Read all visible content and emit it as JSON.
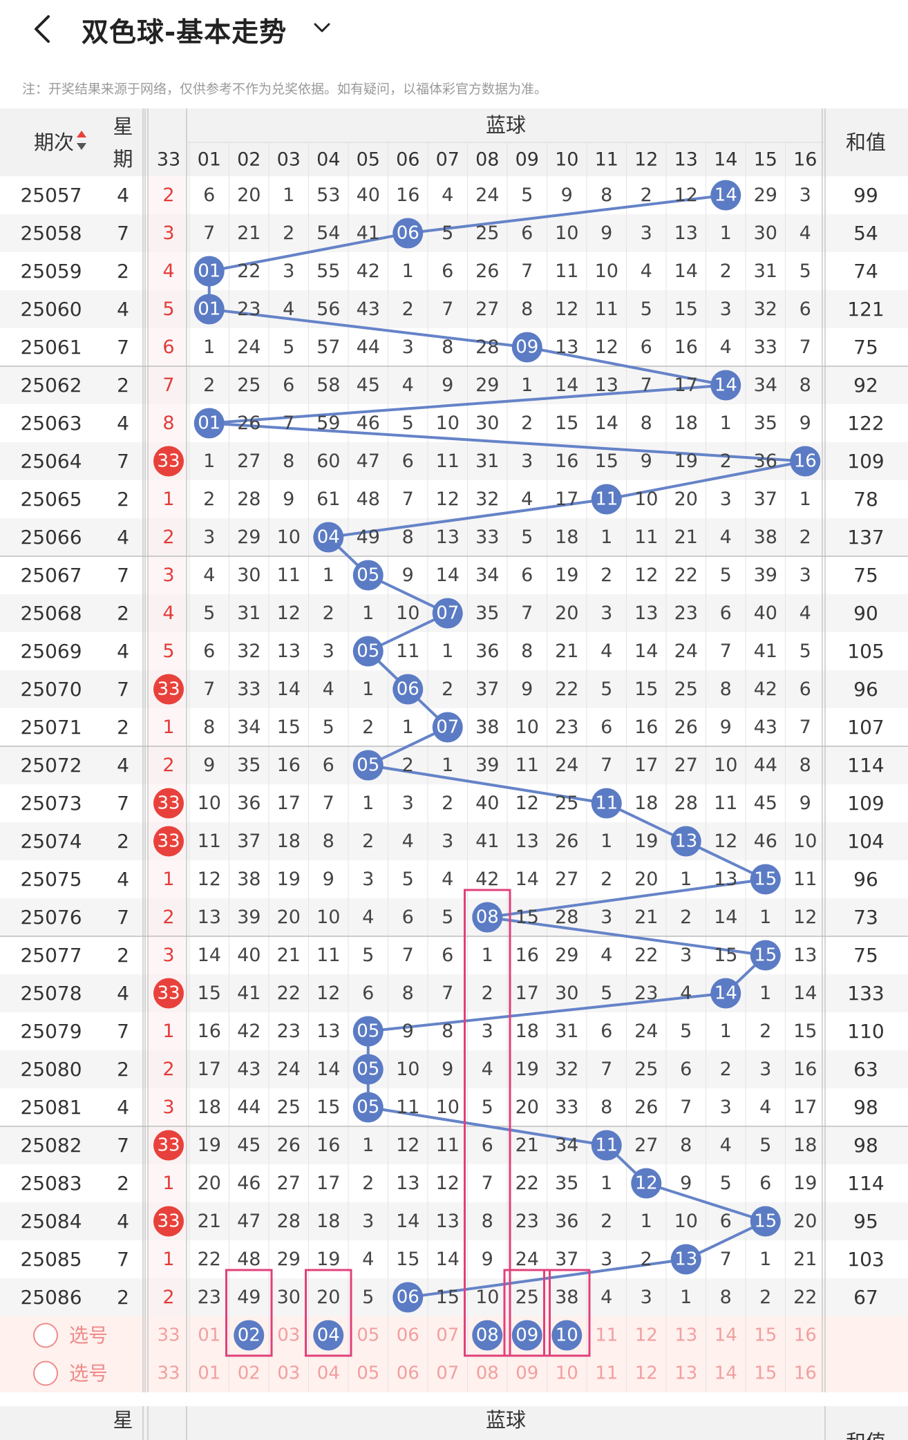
{
  "header": {
    "title": "双色球-基本走势"
  },
  "notice": "注：开奖结果来源于网络，仅供参考不作为兑奖依据。如有疑问，以福体彩官方数据为准。",
  "table": {
    "col_period": "期次",
    "col_week": "星期",
    "col_blue_group": "蓝球",
    "col_sum": "和值",
    "col_omit": "33",
    "blue_numbers": [
      "01",
      "02",
      "03",
      "04",
      "05",
      "06",
      "07",
      "08",
      "09",
      "10",
      "11",
      "12",
      "13",
      "14",
      "15",
      "16"
    ],
    "rows": [
      {
        "p": "25057",
        "w": "4",
        "o": "2",
        "b": 14,
        "s": "99",
        "c": [
          "6",
          "20",
          "1",
          "53",
          "40",
          "16",
          "4",
          "24",
          "5",
          "9",
          "8",
          "2",
          "12",
          "14",
          "29",
          "3"
        ]
      },
      {
        "p": "25058",
        "w": "7",
        "o": "3",
        "b": 6,
        "s": "54",
        "c": [
          "7",
          "21",
          "2",
          "54",
          "41",
          "06",
          "5",
          "25",
          "6",
          "10",
          "9",
          "3",
          "13",
          "1",
          "30",
          "4"
        ]
      },
      {
        "p": "25059",
        "w": "2",
        "o": "4",
        "b": 1,
        "s": "74",
        "c": [
          "01",
          "22",
          "3",
          "55",
          "42",
          "1",
          "6",
          "26",
          "7",
          "11",
          "10",
          "4",
          "14",
          "2",
          "31",
          "5"
        ]
      },
      {
        "p": "25060",
        "w": "4",
        "o": "5",
        "b": 1,
        "s": "121",
        "c": [
          "01",
          "23",
          "4",
          "56",
          "43",
          "2",
          "7",
          "27",
          "8",
          "12",
          "11",
          "5",
          "15",
          "3",
          "32",
          "6"
        ]
      },
      {
        "p": "25061",
        "w": "7",
        "o": "6",
        "b": 9,
        "s": "75",
        "c": [
          "1",
          "24",
          "5",
          "57",
          "44",
          "3",
          "8",
          "28",
          "09",
          "13",
          "12",
          "6",
          "16",
          "4",
          "33",
          "7"
        ]
      },
      {
        "p": "25062",
        "w": "2",
        "o": "7",
        "b": 14,
        "s": "92",
        "c": [
          "2",
          "25",
          "6",
          "58",
          "45",
          "4",
          "9",
          "29",
          "1",
          "14",
          "13",
          "7",
          "17",
          "14",
          "34",
          "8"
        ]
      },
      {
        "p": "25063",
        "w": "4",
        "o": "8",
        "b": 1,
        "s": "122",
        "c": [
          "01",
          "26",
          "7",
          "59",
          "46",
          "5",
          "10",
          "30",
          "2",
          "15",
          "14",
          "8",
          "18",
          "1",
          "35",
          "9"
        ]
      },
      {
        "p": "25064",
        "w": "7",
        "o": "33",
        "b": 16,
        "s": "109",
        "c": [
          "1",
          "27",
          "8",
          "60",
          "47",
          "6",
          "11",
          "31",
          "3",
          "16",
          "15",
          "9",
          "19",
          "2",
          "36",
          "16"
        ]
      },
      {
        "p": "25065",
        "w": "2",
        "o": "1",
        "b": 11,
        "s": "78",
        "c": [
          "2",
          "28",
          "9",
          "61",
          "48",
          "7",
          "12",
          "32",
          "4",
          "17",
          "11",
          "10",
          "20",
          "3",
          "37",
          "1"
        ]
      },
      {
        "p": "25066",
        "w": "4",
        "o": "2",
        "b": 4,
        "s": "137",
        "c": [
          "3",
          "29",
          "10",
          "04",
          "49",
          "8",
          "13",
          "33",
          "5",
          "18",
          "1",
          "11",
          "21",
          "4",
          "38",
          "2"
        ]
      },
      {
        "p": "25067",
        "w": "7",
        "o": "3",
        "b": 5,
        "s": "75",
        "c": [
          "4",
          "30",
          "11",
          "1",
          "05",
          "9",
          "14",
          "34",
          "6",
          "19",
          "2",
          "12",
          "22",
          "5",
          "39",
          "3"
        ]
      },
      {
        "p": "25068",
        "w": "2",
        "o": "4",
        "b": 7,
        "s": "90",
        "c": [
          "5",
          "31",
          "12",
          "2",
          "1",
          "10",
          "07",
          "35",
          "7",
          "20",
          "3",
          "13",
          "23",
          "6",
          "40",
          "4"
        ]
      },
      {
        "p": "25069",
        "w": "4",
        "o": "5",
        "b": 5,
        "s": "105",
        "c": [
          "6",
          "32",
          "13",
          "3",
          "05",
          "11",
          "1",
          "36",
          "8",
          "21",
          "4",
          "14",
          "24",
          "7",
          "41",
          "5"
        ]
      },
      {
        "p": "25070",
        "w": "7",
        "o": "33",
        "b": 6,
        "s": "96",
        "c": [
          "7",
          "33",
          "14",
          "4",
          "1",
          "06",
          "2",
          "37",
          "9",
          "22",
          "5",
          "15",
          "25",
          "8",
          "42",
          "6"
        ]
      },
      {
        "p": "25071",
        "w": "2",
        "o": "1",
        "b": 7,
        "s": "107",
        "c": [
          "8",
          "34",
          "15",
          "5",
          "2",
          "1",
          "07",
          "38",
          "10",
          "23",
          "6",
          "16",
          "26",
          "9",
          "43",
          "7"
        ]
      },
      {
        "p": "25072",
        "w": "4",
        "o": "2",
        "b": 5,
        "s": "114",
        "c": [
          "9",
          "35",
          "16",
          "6",
          "05",
          "2",
          "1",
          "39",
          "11",
          "24",
          "7",
          "17",
          "27",
          "10",
          "44",
          "8"
        ]
      },
      {
        "p": "25073",
        "w": "7",
        "o": "33",
        "b": 11,
        "s": "109",
        "c": [
          "10",
          "36",
          "17",
          "7",
          "1",
          "3",
          "2",
          "40",
          "12",
          "25",
          "11",
          "18",
          "28",
          "11",
          "45",
          "9"
        ]
      },
      {
        "p": "25074",
        "w": "2",
        "o": "33",
        "b": 13,
        "s": "104",
        "c": [
          "11",
          "37",
          "18",
          "8",
          "2",
          "4",
          "3",
          "41",
          "13",
          "26",
          "1",
          "19",
          "13",
          "12",
          "46",
          "10"
        ]
      },
      {
        "p": "25075",
        "w": "4",
        "o": "1",
        "b": 15,
        "s": "96",
        "c": [
          "12",
          "38",
          "19",
          "9",
          "3",
          "5",
          "4",
          "42",
          "14",
          "27",
          "2",
          "20",
          "1",
          "13",
          "15",
          "11"
        ]
      },
      {
        "p": "25076",
        "w": "7",
        "o": "2",
        "b": 8,
        "s": "73",
        "c": [
          "13",
          "39",
          "20",
          "10",
          "4",
          "6",
          "5",
          "08",
          "15",
          "28",
          "3",
          "21",
          "2",
          "14",
          "1",
          "12"
        ]
      },
      {
        "p": "25077",
        "w": "2",
        "o": "3",
        "b": 15,
        "s": "75",
        "c": [
          "14",
          "40",
          "21",
          "11",
          "5",
          "7",
          "6",
          "1",
          "16",
          "29",
          "4",
          "22",
          "3",
          "15",
          "15",
          "13"
        ]
      },
      {
        "p": "25078",
        "w": "4",
        "o": "33",
        "b": 14,
        "s": "133",
        "c": [
          "15",
          "41",
          "22",
          "12",
          "6",
          "8",
          "7",
          "2",
          "17",
          "30",
          "5",
          "23",
          "4",
          "14",
          "1",
          "14"
        ]
      },
      {
        "p": "25079",
        "w": "7",
        "o": "1",
        "b": 5,
        "s": "110",
        "c": [
          "16",
          "42",
          "23",
          "13",
          "05",
          "9",
          "8",
          "3",
          "18",
          "31",
          "6",
          "24",
          "5",
          "1",
          "2",
          "15"
        ]
      },
      {
        "p": "25080",
        "w": "2",
        "o": "2",
        "b": 5,
        "s": "63",
        "c": [
          "17",
          "43",
          "24",
          "14",
          "05",
          "10",
          "9",
          "4",
          "19",
          "32",
          "7",
          "25",
          "6",
          "2",
          "3",
          "16"
        ]
      },
      {
        "p": "25081",
        "w": "4",
        "o": "3",
        "b": 5,
        "s": "98",
        "c": [
          "18",
          "44",
          "25",
          "15",
          "05",
          "11",
          "10",
          "5",
          "20",
          "33",
          "8",
          "26",
          "7",
          "3",
          "4",
          "17"
        ]
      },
      {
        "p": "25082",
        "w": "7",
        "o": "33",
        "b": 11,
        "s": "98",
        "c": [
          "19",
          "45",
          "26",
          "16",
          "1",
          "12",
          "11",
          "6",
          "21",
          "34",
          "11",
          "27",
          "8",
          "4",
          "5",
          "18"
        ]
      },
      {
        "p": "25083",
        "w": "2",
        "o": "1",
        "b": 12,
        "s": "114",
        "c": [
          "20",
          "46",
          "27",
          "17",
          "2",
          "13",
          "12",
          "7",
          "22",
          "35",
          "1",
          "12",
          "9",
          "5",
          "6",
          "19"
        ]
      },
      {
        "p": "25084",
        "w": "4",
        "o": "33",
        "b": 15,
        "s": "95",
        "c": [
          "21",
          "47",
          "28",
          "18",
          "3",
          "14",
          "13",
          "8",
          "23",
          "36",
          "2",
          "1",
          "10",
          "6",
          "15",
          "20"
        ]
      },
      {
        "p": "25085",
        "w": "7",
        "o": "1",
        "b": 13,
        "s": "103",
        "c": [
          "22",
          "48",
          "29",
          "19",
          "4",
          "15",
          "14",
          "9",
          "24",
          "37",
          "3",
          "2",
          "13",
          "7",
          "1",
          "21"
        ]
      },
      {
        "p": "25086",
        "w": "2",
        "o": "2",
        "b": 6,
        "s": "67",
        "c": [
          "23",
          "49",
          "30",
          "20",
          "5",
          "06",
          "15",
          "10",
          "25",
          "38",
          "4",
          "3",
          "1",
          "8",
          "2",
          "22"
        ]
      }
    ],
    "select_label": "选号",
    "select_row1_selected": [
      2,
      4,
      8,
      9,
      10
    ],
    "highlight_boxes": [
      "col02-25086",
      "col04-25086",
      "col08-25076",
      "col09-25086",
      "col10-25086"
    ]
  },
  "colors": {
    "blue_ball": "#5b7bc4",
    "line": "#6583c8",
    "red_ball": "#e8413c",
    "red_text": "#e23c3a",
    "pink_text": "#f0a0a0",
    "highlight_box": "#e0407a",
    "header_bg": "#f2f2f2",
    "select_bg": "#fff1ee"
  }
}
